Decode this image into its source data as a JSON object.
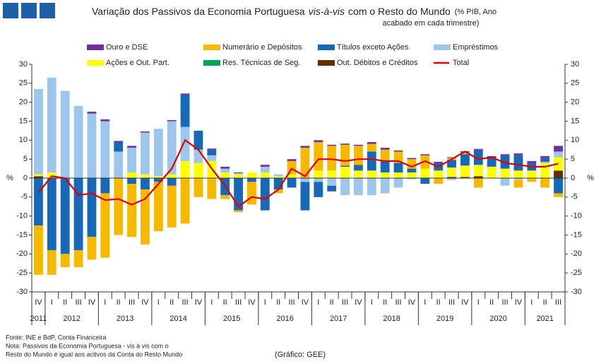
{
  "chart_data": {
    "type": "stacked_bar_line",
    "title_parts": [
      "Variação dos Passivos da Economia Portuguesa",
      "vis-à-vis",
      "com o Resto do Mundo"
    ],
    "subtitle_lines": [
      "(% PIB, Ano",
      "acabado em cada trimestre)"
    ],
    "ylabel": "%",
    "categories": [
      "IV",
      "I",
      "II",
      "III",
      "IV",
      "I",
      "II",
      "III",
      "IV",
      "I",
      "II",
      "III",
      "IV",
      "I",
      "II",
      "III",
      "IV",
      "I",
      "II",
      "III",
      "IV",
      "I",
      "II",
      "III",
      "IV",
      "I",
      "II",
      "III",
      "IV",
      "I",
      "II",
      "III",
      "IV",
      "I",
      "II",
      "III",
      "IV",
      "I",
      "II",
      "III"
    ],
    "years": [
      "2011",
      "2012",
      "2013",
      "2014",
      "2015",
      "2016",
      "2017",
      "2018",
      "2019",
      "2020",
      "2021"
    ],
    "ylim": [
      -30,
      30
    ],
    "yticks": [
      -30,
      -25,
      -20,
      -15,
      -10,
      -5,
      0,
      5,
      10,
      15,
      20,
      25,
      30
    ],
    "grid": false,
    "series": [
      {
        "name": "Ouro e DSE",
        "color": "#7030a0",
        "values": [
          0,
          0,
          0,
          0,
          0.5,
          0.5,
          0.3,
          0.5,
          0.3,
          0,
          0.3,
          0.3,
          0,
          0.3,
          0.5,
          0.2,
          0,
          0.5,
          0,
          0.5,
          0.5,
          0.5,
          0.3,
          0.3,
          0.3,
          0.5,
          0.5,
          0.3,
          0.3,
          0.3,
          0.3,
          0.2,
          0.3,
          0.2,
          0.3,
          0.3,
          0.5,
          0.5,
          0.5,
          1.5
        ]
      },
      {
        "name": "Numerário e Depósitos",
        "color": "#f7b900",
        "values": [
          -13,
          -6.5,
          -3.5,
          -4.5,
          -6,
          -17,
          -15,
          -14,
          -14.5,
          -13,
          -11,
          -12,
          -5,
          -5.5,
          -1,
          -0.5,
          -6,
          0,
          -1,
          3.5,
          8,
          7.5,
          6.5,
          5.5,
          5,
          2,
          3,
          3,
          2.5,
          3.5,
          -1.5,
          0.5,
          0.5,
          -2.5,
          0,
          0,
          -2,
          -1,
          -2.5,
          -1
        ]
      },
      {
        "name": "Títulos exceto Ações",
        "color": "#1769b8",
        "values": [
          -12.5,
          -19,
          -20,
          -19,
          -15.5,
          -4,
          2.5,
          -1.5,
          -3,
          -1,
          -2,
          8.5,
          5,
          1.5,
          -4.5,
          -8.5,
          -1,
          -8.5,
          -3,
          -2.5,
          -7.5,
          -4,
          -1.5,
          0.3,
          1.5,
          5,
          3,
          2.5,
          1,
          -1.5,
          2,
          2,
          3,
          4,
          2.5,
          3.5,
          4,
          2,
          1,
          -4
        ]
      },
      {
        "name": "Empréstimos",
        "color": "#9dc6ec",
        "values": [
          22.5,
          25,
          23,
          19,
          17,
          15,
          7,
          6.5,
          11,
          12.5,
          14,
          9,
          3.5,
          1.5,
          1,
          0.3,
          0,
          1.5,
          0.5,
          0,
          -1,
          -1,
          -2,
          -4.5,
          -4.5,
          -4.5,
          -4,
          -2.5,
          -0.3,
          0,
          0,
          -0.5,
          0,
          0,
          0,
          -2,
          -0.5,
          0,
          0.3,
          1.5
        ]
      },
      {
        "name": "Ações e Out. Part.",
        "color": "#ffff00",
        "values": [
          0.5,
          1.5,
          0,
          0,
          0,
          0,
          0,
          1.5,
          1,
          0.5,
          1,
          4.5,
          4,
          4.5,
          1.5,
          1,
          1.5,
          1.5,
          0.5,
          1,
          0,
          2,
          2,
          3,
          2,
          2,
          1.5,
          1.5,
          1.5,
          2.5,
          2,
          2.5,
          3,
          3,
          3,
          2.5,
          2,
          2,
          4,
          3.5
        ]
      },
      {
        "name": "Res. Técnicas de Seg.",
        "color": "#00a651",
        "values": [
          0,
          0,
          0,
          0,
          0,
          0,
          0,
          0,
          0,
          0,
          0,
          0,
          0,
          0,
          0,
          0,
          0,
          0,
          0,
          0,
          0,
          0,
          0,
          0,
          0,
          0,
          0,
          0,
          0,
          0,
          0,
          0,
          0,
          0,
          0,
          0,
          0,
          0,
          0,
          0
        ]
      },
      {
        "name": "Out. Débitos e Créditos",
        "color": "#603000",
        "values": [
          0.5,
          0,
          0,
          0,
          0,
          0,
          0,
          0,
          0,
          0,
          0,
          0,
          0,
          0,
          0,
          0,
          0,
          0,
          0,
          0,
          0,
          0,
          0,
          0,
          0,
          0,
          0,
          0,
          0,
          0,
          0,
          0.3,
          0.3,
          0.5,
          0,
          0,
          0,
          0,
          0,
          2
        ]
      },
      {
        "name": "Total",
        "type": "line",
        "color": "#e00000",
        "values": [
          -3.8,
          0.5,
          0,
          -4.5,
          -4,
          -5.8,
          -5.5,
          -7,
          -5.5,
          -1.5,
          2.5,
          10,
          7.5,
          2.5,
          -2,
          -7.5,
          -5,
          -5.5,
          -3,
          2.5,
          0.5,
          5,
          5,
          4.5,
          5,
          5,
          4.5,
          4.5,
          3,
          4.5,
          3,
          5,
          7,
          5,
          5.5,
          4,
          3.5,
          3,
          3,
          3.8
        ]
      }
    ],
    "notes": [
      "Fonte: INE e BdP, Conta Financeira",
      "Nota: Passivos da Economia Portuguesa - vis à vis com o",
      "Resto do Mundo é igual aos activos da Conta do Resto Mundo"
    ],
    "credit": "(Gráfico: GEE)"
  }
}
